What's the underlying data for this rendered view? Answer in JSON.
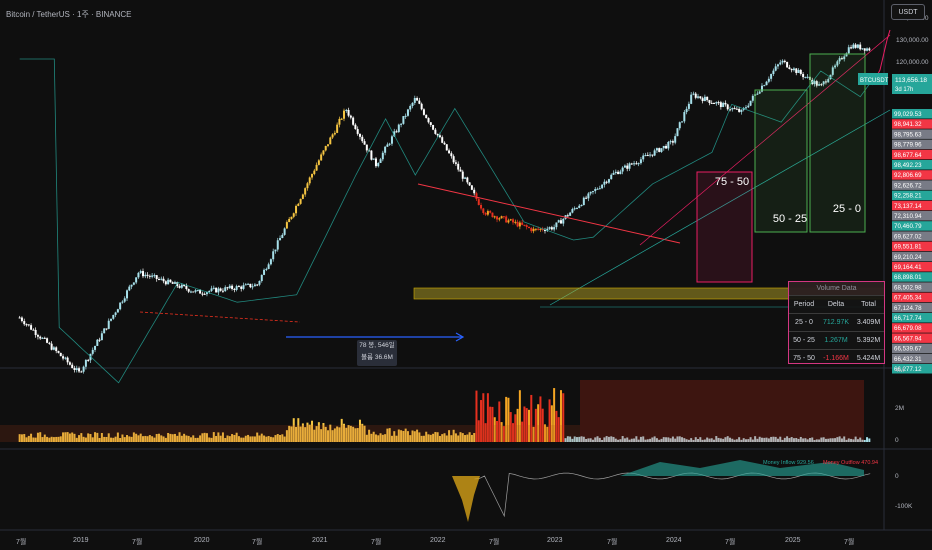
{
  "header": {
    "title": "Bitcoin / TetherUS · 1주 · BINANCE"
  },
  "currency_button": "USDT",
  "price_scale": {
    "ticks": [
      "140,000.00",
      "130,000.00",
      "120,000.00"
    ],
    "last_price_label": "BTCUSDT",
    "last_price": "113,656.18",
    "countdown": "3d 17h",
    "levels": [
      {
        "v": "99,029.53",
        "c": "#26a69a"
      },
      {
        "v": "98,941.32",
        "c": "#f23645"
      },
      {
        "v": "98,795.63",
        "c": "#787b86"
      },
      {
        "v": "98,779.96",
        "c": "#787b86"
      },
      {
        "v": "98,677.64",
        "c": "#f23645"
      },
      {
        "v": "98,492.23",
        "c": "#26a69a"
      },
      {
        "v": "92,806.69",
        "c": "#f23645"
      },
      {
        "v": "92,626.72",
        "c": "#787b86"
      },
      {
        "v": "92,258.21",
        "c": "#26a69a"
      },
      {
        "v": "73,137.14",
        "c": "#f23645"
      },
      {
        "v": "72,310.94",
        "c": "#787b86"
      },
      {
        "v": "70,460.79",
        "c": "#26a69a"
      },
      {
        "v": "69,627.02",
        "c": "#787b86"
      },
      {
        "v": "69,551.81",
        "c": "#f23645"
      },
      {
        "v": "69,210.24",
        "c": "#787b86"
      },
      {
        "v": "69,164.41",
        "c": "#f23645"
      },
      {
        "v": "68,898.01",
        "c": "#26a69a"
      },
      {
        "v": "68,502.98",
        "c": "#787b86"
      },
      {
        "v": "67,405.34",
        "c": "#f23645"
      },
      {
        "v": "67,124.78",
        "c": "#787b86"
      },
      {
        "v": "66,717.74",
        "c": "#26a69a"
      },
      {
        "v": "66,679.08",
        "c": "#f23645"
      },
      {
        "v": "66,567.94",
        "c": "#f23645"
      },
      {
        "v": "66,539.67",
        "c": "#787b86"
      },
      {
        "v": "66,432.31",
        "c": "#787b86"
      },
      {
        "v": "66,277.12",
        "c": "#26a69a"
      }
    ]
  },
  "zones": [
    "75 - 50",
    "50 - 25",
    "25 - 0"
  ],
  "annotation": {
    "line1": "78 봉, 546일",
    "line2": "볼륨 36.6M"
  },
  "volume_table": {
    "title": "Volume Data",
    "headers": [
      "Period",
      "Delta",
      "Total"
    ],
    "rows": [
      {
        "period": "25 - 0",
        "delta": "712.97K",
        "total": "3.409M",
        "delta_color": "#26a69a"
      },
      {
        "period": "50 - 25",
        "delta": "1.267M",
        "total": "5.392M",
        "delta_color": "#26a69a"
      },
      {
        "period": "75 - 50",
        "delta": "-1.166M",
        "total": "5.424M",
        "delta_color": "#f23645"
      }
    ]
  },
  "volume_pane": {
    "ticks": [
      "4M",
      "2M",
      "0"
    ]
  },
  "flow_pane": {
    "inflow_label": "Money Inflow 929.56",
    "outflow_label": "Money Outflow 470.94",
    "ticks": [
      "0",
      "-100K"
    ]
  },
  "x_axis": [
    "7월",
    "2019",
    "7월",
    "2020",
    "7월",
    "2021",
    "7월",
    "2022",
    "7월",
    "2023",
    "7월",
    "2024",
    "7월",
    "2025",
    "7월"
  ],
  "chart_data": {
    "type": "line",
    "title": "Bitcoin / TetherUS · 1주 · BINANCE",
    "xlabel": "",
    "ylabel": "",
    "y_scale": "log",
    "series": [
      {
        "name": "BTCUSDT",
        "x": [
          "2018-07",
          "2019-01",
          "2019-07",
          "2020-01",
          "2020-07",
          "2021-01",
          "2021-04",
          "2021-07",
          "2021-11",
          "2022-06",
          "2022-11",
          "2023-01",
          "2023-07",
          "2024-01",
          "2024-03",
          "2024-08",
          "2024-12",
          "2025-04",
          "2025-07",
          "2025-09"
        ],
        "values": [
          6500,
          3600,
          10500,
          8500,
          9200,
          33000,
          60000,
          33000,
          67000,
          20000,
          16500,
          17000,
          30000,
          42000,
          70000,
          58000,
          100000,
          76000,
          118000,
          113656
        ]
      }
    ],
    "zones": [
      {
        "label": "75 - 50",
        "value": "-1.166M"
      },
      {
        "label": "50 - 25",
        "value": "1.267M"
      },
      {
        "label": "25 - 0",
        "value": "712.97K"
      }
    ],
    "grid": false,
    "legend": "none"
  },
  "colors": {
    "background": "#0f0f0f",
    "up": "#a7e0ea",
    "down": "#ffffff",
    "bull": "#f5c542",
    "bear": "#e6301f",
    "zone_green": "#4caf50",
    "zone_pink": "#e91e63",
    "accent": "#2196f3"
  }
}
